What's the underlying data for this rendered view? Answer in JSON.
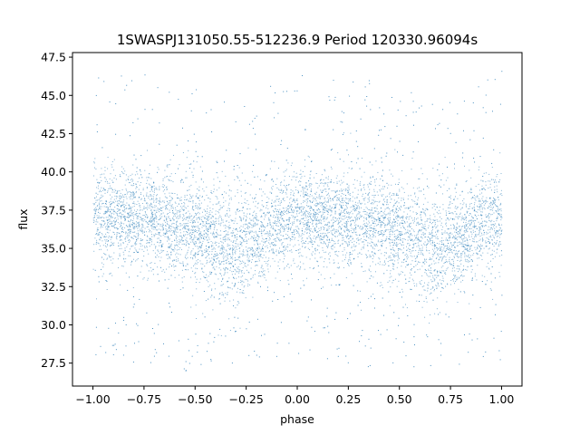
{
  "chart_data": {
    "type": "scatter",
    "title": "1SWASPJ131050.55-512236.9 Period 120330.96094s",
    "xlabel": "phase",
    "ylabel": "flux",
    "xlim": [
      -1.1,
      1.1
    ],
    "ylim": [
      26.0,
      47.8
    ],
    "x_ticks": [
      -1.0,
      -0.75,
      -0.5,
      -0.25,
      0.0,
      0.25,
      0.5,
      0.75,
      1.0
    ],
    "x_tick_labels": [
      "−1.00",
      "−0.75",
      "−0.50",
      "−0.25",
      "0.00",
      "0.25",
      "0.50",
      "0.75",
      "1.00"
    ],
    "y_ticks": [
      27.5,
      30.0,
      32.5,
      35.0,
      37.5,
      40.0,
      42.5,
      45.0,
      47.5
    ],
    "y_tick_labels": [
      "27.5",
      "30.0",
      "32.5",
      "35.0",
      "37.5",
      "40.0",
      "42.5",
      "45.0",
      "47.5"
    ],
    "grid": false,
    "legend": "none",
    "series_color": "#1f77b4",
    "band_profile": {
      "phase": [
        -1.0,
        -0.8,
        -0.6,
        -0.45,
        -0.33,
        -0.2,
        0.0,
        0.2,
        0.4,
        0.55,
        0.67,
        0.8,
        1.0
      ],
      "median_flux": [
        37.2,
        37.0,
        36.6,
        35.8,
        34.9,
        36.0,
        37.1,
        37.0,
        36.6,
        35.8,
        34.9,
        36.0,
        37.2
      ],
      "spread": [
        1.6,
        1.5,
        1.5,
        1.7,
        1.9,
        1.6,
        1.5,
        1.5,
        1.5,
        1.7,
        1.9,
        1.6,
        1.6
      ]
    },
    "outlier_range": [
      27.0,
      46.8
    ]
  }
}
